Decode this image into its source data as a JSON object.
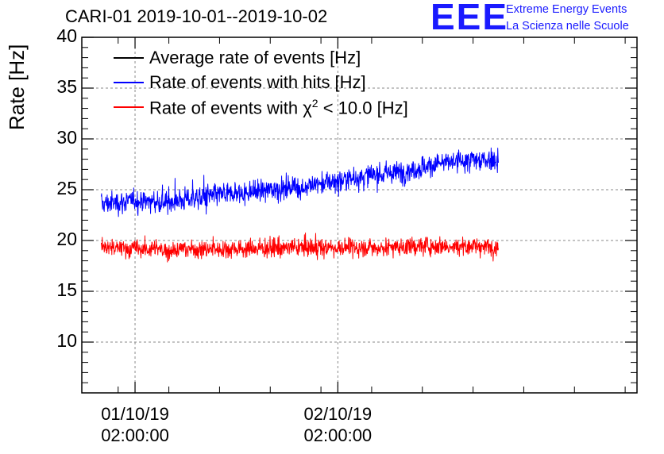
{
  "title": "CARI-01 2019-10-01--2019-10-02",
  "logo": {
    "mark": "EEE",
    "line1": "Extreme Energy Events",
    "line2": "La Scienza nelle Scuole"
  },
  "chart_data": {
    "type": "line",
    "ylabel": "Rate [Hz]",
    "xlabel": "",
    "ylim": [
      5,
      40
    ],
    "yticks": [
      10,
      15,
      20,
      25,
      30,
      35,
      40
    ],
    "x_unit": "hours since 2019-10-01 00:00:00",
    "xlim": [
      -4.3,
      61.4
    ],
    "xticks": [
      {
        "x": 2,
        "date": "01/10/19",
        "time": "02:00:00"
      },
      {
        "x": 26,
        "date": "02/10/19",
        "time": "02:00:00"
      }
    ],
    "grid": true,
    "legend_position": "top-left",
    "series": [
      {
        "name": "Average rate of events [Hz]",
        "color": "#000000",
        "points": []
      },
      {
        "name": "Rate of events with hits [Hz]",
        "color": "#0000ff",
        "x_range": [
          -2,
          45
        ],
        "trend_start": 23.5,
        "trend_end": 28.0,
        "points": [
          [
            -2,
            23.6
          ],
          [
            2,
            23.9
          ],
          [
            6,
            23.8
          ],
          [
            10,
            24.3
          ],
          [
            14,
            24.6
          ],
          [
            18,
            25.0
          ],
          [
            22,
            25.3
          ],
          [
            26,
            25.9
          ],
          [
            30,
            26.4
          ],
          [
            34,
            26.8
          ],
          [
            38,
            27.6
          ],
          [
            42,
            27.9
          ],
          [
            45,
            28.0
          ]
        ]
      },
      {
        "name": "Rate of events with χ² < 10.0 [Hz]",
        "legend_prefix": "Rate of events with ",
        "legend_chi": "χ",
        "legend_sup": "2",
        "legend_suffix": " < 10.0 [Hz]",
        "color": "#ff0000",
        "x_range": [
          -2,
          45
        ],
        "trend_start": 19.2,
        "trend_end": 19.5,
        "points": [
          [
            -2,
            19.3
          ],
          [
            6,
            19.1
          ],
          [
            14,
            19.2
          ],
          [
            22,
            19.3
          ],
          [
            30,
            19.3
          ],
          [
            38,
            19.5
          ],
          [
            45,
            19.4
          ]
        ]
      }
    ]
  }
}
